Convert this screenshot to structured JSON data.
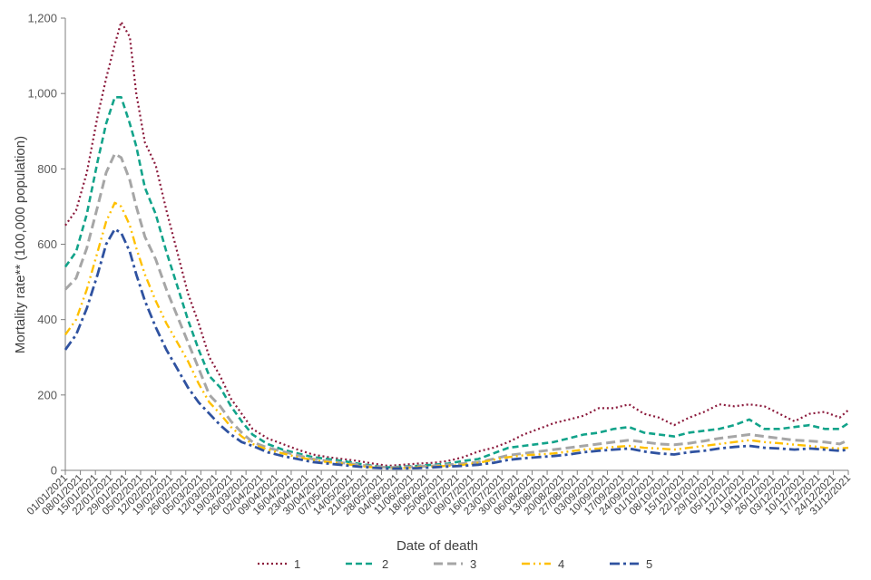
{
  "chart_data": {
    "type": "line",
    "title": "",
    "xlabel": "Date of death",
    "ylabel": "Mortality rate** (100,000 population)",
    "ylim": [
      0,
      1200
    ],
    "y_ticks": [
      "0",
      "200",
      "400",
      "600",
      "800",
      "1,000",
      "1,200"
    ],
    "y_tick_values": [
      0,
      200,
      400,
      600,
      800,
      1000,
      1200
    ],
    "x_start": "2021-01-01",
    "x_end": "2021-12-31",
    "x_tick_labels": [
      "01/01/2021",
      "08/01/2021",
      "15/01/2021",
      "22/01/2021",
      "29/01/2021",
      "05/02/2021",
      "12/02/2021",
      "19/02/2021",
      "26/02/2021",
      "05/03/2021",
      "12/03/2021",
      "19/03/2021",
      "26/03/2021",
      "02/04/2021",
      "09/04/2021",
      "16/04/2021",
      "23/04/2021",
      "30/04/2021",
      "07/05/2021",
      "14/05/2021",
      "21/05/2021",
      "28/05/2021",
      "04/06/2021",
      "11/06/2021",
      "18/06/2021",
      "25/06/2021",
      "02/07/2021",
      "09/07/2021",
      "16/07/2021",
      "23/07/2021",
      "30/07/2021",
      "06/08/2021",
      "13/08/2021",
      "20/08/2021",
      "27/08/2021",
      "03/09/2021",
      "10/09/2021",
      "17/09/2021",
      "24/09/2021",
      "01/10/2021",
      "08/10/2021",
      "15/10/2021",
      "22/10/2021",
      "29/10/2021",
      "05/11/2021",
      "12/11/2021",
      "19/11/2021",
      "26/11/2021",
      "03/12/2021",
      "10/12/2021",
      "17/12/2021",
      "24/12/2021",
      "31/12/2021"
    ],
    "grid": false,
    "legend_position": "bottom",
    "series": [
      {
        "name": "1",
        "color": "#8B1A3C",
        "style": "dotted",
        "x": [
          "2021-01-01",
          "2021-01-06",
          "2021-01-11",
          "2021-01-16",
          "2021-01-20",
          "2021-01-24",
          "2021-01-27",
          "2021-01-31",
          "2021-02-03",
          "2021-02-07",
          "2021-02-12",
          "2021-02-17",
          "2021-02-22",
          "2021-02-27",
          "2021-03-04",
          "2021-03-09",
          "2021-03-14",
          "2021-03-19",
          "2021-03-24",
          "2021-03-29",
          "2021-04-05",
          "2021-04-12",
          "2021-04-19",
          "2021-04-26",
          "2021-05-03",
          "2021-05-10",
          "2021-05-17",
          "2021-05-24",
          "2021-05-31",
          "2021-06-07",
          "2021-06-14",
          "2021-06-21",
          "2021-06-28",
          "2021-07-05",
          "2021-07-12",
          "2021-07-19",
          "2021-07-26",
          "2021-08-02",
          "2021-08-09",
          "2021-08-16",
          "2021-08-23",
          "2021-08-30",
          "2021-09-06",
          "2021-09-13",
          "2021-09-20",
          "2021-09-27",
          "2021-10-04",
          "2021-10-11",
          "2021-10-18",
          "2021-10-25",
          "2021-11-01",
          "2021-11-08",
          "2021-11-15",
          "2021-11-22",
          "2021-11-29",
          "2021-12-06",
          "2021-12-13",
          "2021-12-20",
          "2021-12-27",
          "2021-12-31"
        ],
        "y": [
          650,
          690,
          790,
          940,
          1040,
          1130,
          1190,
          1150,
          1000,
          870,
          810,
          690,
          580,
          470,
          390,
          300,
          250,
          190,
          150,
          110,
          85,
          70,
          55,
          42,
          35,
          30,
          25,
          18,
          12,
          15,
          18,
          20,
          25,
          35,
          50,
          60,
          75,
          95,
          110,
          125,
          135,
          145,
          165,
          165,
          175,
          150,
          140,
          120,
          140,
          155,
          175,
          170,
          175,
          170,
          150,
          130,
          150,
          155,
          140,
          160
        ]
      },
      {
        "name": "2",
        "color": "#12A38A",
        "style": "dashed",
        "x": [
          "2021-01-01",
          "2021-01-06",
          "2021-01-11",
          "2021-01-16",
          "2021-01-20",
          "2021-01-24",
          "2021-01-27",
          "2021-01-31",
          "2021-02-03",
          "2021-02-07",
          "2021-02-12",
          "2021-02-17",
          "2021-02-22",
          "2021-02-27",
          "2021-03-04",
          "2021-03-09",
          "2021-03-14",
          "2021-03-19",
          "2021-03-24",
          "2021-03-29",
          "2021-04-05",
          "2021-04-12",
          "2021-04-19",
          "2021-04-26",
          "2021-05-03",
          "2021-05-10",
          "2021-05-17",
          "2021-05-24",
          "2021-05-31",
          "2021-06-07",
          "2021-06-14",
          "2021-06-21",
          "2021-06-28",
          "2021-07-05",
          "2021-07-12",
          "2021-07-19",
          "2021-07-26",
          "2021-08-02",
          "2021-08-09",
          "2021-08-16",
          "2021-08-23",
          "2021-08-30",
          "2021-09-06",
          "2021-09-13",
          "2021-09-20",
          "2021-09-27",
          "2021-10-04",
          "2021-10-11",
          "2021-10-18",
          "2021-10-25",
          "2021-11-01",
          "2021-11-08",
          "2021-11-15",
          "2021-11-22",
          "2021-11-29",
          "2021-12-06",
          "2021-12-13",
          "2021-12-20",
          "2021-12-27",
          "2021-12-31"
        ],
        "y": [
          540,
          580,
          680,
          820,
          920,
          990,
          990,
          920,
          860,
          750,
          680,
          580,
          490,
          400,
          320,
          250,
          220,
          170,
          130,
          95,
          70,
          55,
          45,
          35,
          30,
          25,
          18,
          12,
          8,
          10,
          12,
          15,
          18,
          25,
          30,
          45,
          60,
          65,
          70,
          75,
          85,
          95,
          100,
          110,
          115,
          100,
          95,
          90,
          100,
          105,
          110,
          120,
          135,
          110,
          110,
          115,
          120,
          110,
          110,
          125
        ]
      },
      {
        "name": "3",
        "color": "#A6A6A6",
        "style": "dashed-long",
        "x": [
          "2021-01-01",
          "2021-01-06",
          "2021-01-11",
          "2021-01-16",
          "2021-01-20",
          "2021-01-24",
          "2021-01-27",
          "2021-01-31",
          "2021-02-03",
          "2021-02-07",
          "2021-02-12",
          "2021-02-17",
          "2021-02-22",
          "2021-02-27",
          "2021-03-04",
          "2021-03-09",
          "2021-03-14",
          "2021-03-19",
          "2021-03-24",
          "2021-03-29",
          "2021-04-05",
          "2021-04-12",
          "2021-04-19",
          "2021-04-26",
          "2021-05-03",
          "2021-05-10",
          "2021-05-17",
          "2021-05-24",
          "2021-05-31",
          "2021-06-07",
          "2021-06-14",
          "2021-06-21",
          "2021-06-28",
          "2021-07-05",
          "2021-07-12",
          "2021-07-19",
          "2021-07-26",
          "2021-08-02",
          "2021-08-09",
          "2021-08-16",
          "2021-08-23",
          "2021-08-30",
          "2021-09-06",
          "2021-09-13",
          "2021-09-20",
          "2021-09-27",
          "2021-10-04",
          "2021-10-11",
          "2021-10-18",
          "2021-10-25",
          "2021-11-01",
          "2021-11-08",
          "2021-11-15",
          "2021-11-22",
          "2021-11-29",
          "2021-12-06",
          "2021-12-13",
          "2021-12-20",
          "2021-12-27",
          "2021-12-31"
        ],
        "y": [
          480,
          510,
          590,
          700,
          790,
          840,
          830,
          770,
          700,
          620,
          560,
          480,
          410,
          340,
          270,
          200,
          170,
          130,
          100,
          75,
          60,
          50,
          40,
          30,
          25,
          20,
          15,
          10,
          8,
          8,
          10,
          12,
          15,
          18,
          22,
          30,
          40,
          45,
          50,
          55,
          60,
          65,
          70,
          75,
          80,
          75,
          70,
          68,
          72,
          78,
          85,
          90,
          95,
          90,
          85,
          80,
          78,
          75,
          70,
          80
        ]
      },
      {
        "name": "4",
        "color": "#FFC000",
        "style": "dash-dot-dot",
        "x": [
          "2021-01-01",
          "2021-01-06",
          "2021-01-11",
          "2021-01-16",
          "2021-01-20",
          "2021-01-24",
          "2021-01-27",
          "2021-01-31",
          "2021-02-03",
          "2021-02-07",
          "2021-02-12",
          "2021-02-17",
          "2021-02-22",
          "2021-02-27",
          "2021-03-04",
          "2021-03-09",
          "2021-03-14",
          "2021-03-19",
          "2021-03-24",
          "2021-03-29",
          "2021-04-05",
          "2021-04-12",
          "2021-04-19",
          "2021-04-26",
          "2021-05-03",
          "2021-05-10",
          "2021-05-17",
          "2021-05-24",
          "2021-05-31",
          "2021-06-07",
          "2021-06-14",
          "2021-06-21",
          "2021-06-28",
          "2021-07-05",
          "2021-07-12",
          "2021-07-19",
          "2021-07-26",
          "2021-08-02",
          "2021-08-09",
          "2021-08-16",
          "2021-08-23",
          "2021-08-30",
          "2021-09-06",
          "2021-09-13",
          "2021-09-20",
          "2021-09-27",
          "2021-10-04",
          "2021-10-11",
          "2021-10-18",
          "2021-10-25",
          "2021-11-01",
          "2021-11-08",
          "2021-11-15",
          "2021-11-22",
          "2021-11-29",
          "2021-12-06",
          "2021-12-13",
          "2021-12-20",
          "2021-12-27",
          "2021-12-31"
        ],
        "y": [
          360,
          400,
          480,
          580,
          660,
          710,
          700,
          650,
          590,
          520,
          450,
          390,
          340,
          290,
          230,
          180,
          150,
          115,
          90,
          70,
          55,
          45,
          35,
          28,
          22,
          18,
          12,
          8,
          6,
          6,
          8,
          10,
          12,
          15,
          20,
          28,
          35,
          40,
          42,
          45,
          50,
          55,
          58,
          62,
          65,
          60,
          58,
          55,
          60,
          65,
          70,
          75,
          80,
          75,
          72,
          68,
          65,
          60,
          58,
          60
        ]
      },
      {
        "name": "5",
        "color": "#2F52A0",
        "style": "dash-dot",
        "x": [
          "2021-01-01",
          "2021-01-06",
          "2021-01-11",
          "2021-01-16",
          "2021-01-20",
          "2021-01-24",
          "2021-01-27",
          "2021-01-31",
          "2021-02-03",
          "2021-02-07",
          "2021-02-12",
          "2021-02-17",
          "2021-02-22",
          "2021-02-27",
          "2021-03-04",
          "2021-03-09",
          "2021-03-14",
          "2021-03-19",
          "2021-03-24",
          "2021-03-29",
          "2021-04-05",
          "2021-04-12",
          "2021-04-19",
          "2021-04-26",
          "2021-05-03",
          "2021-05-10",
          "2021-05-17",
          "2021-05-24",
          "2021-05-31",
          "2021-06-07",
          "2021-06-14",
          "2021-06-21",
          "2021-06-28",
          "2021-07-05",
          "2021-07-12",
          "2021-07-19",
          "2021-07-26",
          "2021-08-02",
          "2021-08-09",
          "2021-08-16",
          "2021-08-23",
          "2021-08-30",
          "2021-09-06",
          "2021-09-13",
          "2021-09-20",
          "2021-09-27",
          "2021-10-04",
          "2021-10-11",
          "2021-10-18",
          "2021-10-25",
          "2021-11-01",
          "2021-11-08",
          "2021-11-15",
          "2021-11-22",
          "2021-11-29",
          "2021-12-06",
          "2021-12-13",
          "2021-12-20",
          "2021-12-27",
          "2021-12-31"
        ],
        "y": [
          320,
          360,
          430,
          520,
          600,
          640,
          630,
          580,
          520,
          450,
          380,
          320,
          270,
          220,
          180,
          150,
          120,
          95,
          75,
          65,
          48,
          38,
          30,
          22,
          18,
          14,
          10,
          7,
          5,
          5,
          6,
          8,
          10,
          12,
          15,
          20,
          28,
          32,
          35,
          38,
          42,
          48,
          52,
          55,
          58,
          50,
          45,
          42,
          48,
          52,
          58,
          62,
          65,
          60,
          58,
          55,
          58,
          55,
          52,
          55
        ]
      }
    ]
  }
}
